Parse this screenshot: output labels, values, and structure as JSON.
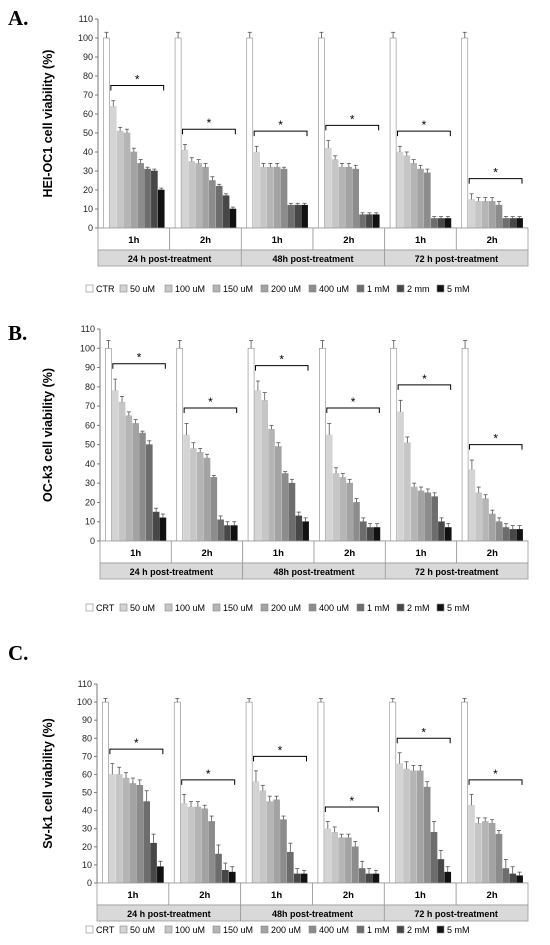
{
  "series_names": [
    "CTR",
    "50 uM",
    "100 uM",
    "150 uM",
    "200 uM",
    "400 uM",
    "1 mM",
    "2 mm",
    "5 mM"
  ],
  "colors": [
    "#ffffff",
    "#d4d4d4",
    "#c6c6c6",
    "#b5b5b5",
    "#a3a3a3",
    "#8c8c8c",
    "#6d6d6d",
    "#474747",
    "#111111"
  ],
  "chart_data": [
    {
      "type": "bar",
      "panel_label": "A.",
      "ylabel": "HEI-OC1 cell viability (%)",
      "ylim": [
        0,
        110
      ],
      "yticks": [
        0,
        10,
        20,
        30,
        40,
        50,
        60,
        70,
        80,
        90,
        100,
        110
      ],
      "categories": [
        "1h",
        "2h",
        "1h",
        "2h",
        "1h",
        "2h"
      ],
      "groups": [
        "24 h post-treatment",
        "48h post-treatment",
        "72 h post-treatment"
      ],
      "legend": [
        "CTR",
        "50 uM",
        "100 uM",
        "150 uM",
        "200 uM",
        "400 uM",
        "1 mM",
        "2 mm",
        "5 mM"
      ],
      "significance": "*",
      "series": [
        {
          "name": "CTR",
          "values": [
            100,
            100,
            100,
            100,
            100,
            100
          ]
        },
        {
          "name": "50 uM",
          "values": [
            64,
            41,
            40,
            42,
            40,
            15
          ]
        },
        {
          "name": "100 uM",
          "values": [
            51,
            35,
            32,
            36,
            38,
            14
          ]
        },
        {
          "name": "150 uM",
          "values": [
            50,
            34,
            32,
            32,
            34,
            14
          ]
        },
        {
          "name": "200 uM",
          "values": [
            40,
            32,
            32,
            32,
            31,
            14
          ]
        },
        {
          "name": "400 uM",
          "values": [
            34,
            25,
            31,
            31,
            29,
            12
          ]
        },
        {
          "name": "1 mM",
          "values": [
            31,
            22,
            12,
            7,
            5,
            5
          ]
        },
        {
          "name": "2 mm",
          "values": [
            30,
            17,
            12,
            7,
            5,
            5
          ]
        },
        {
          "name": "5 mM",
          "values": [
            20,
            10,
            12,
            7,
            5,
            5
          ]
        }
      ],
      "errors": [
        [
          3,
          3,
          3,
          3,
          3,
          3
        ],
        [
          3,
          3,
          3,
          4,
          3,
          3
        ],
        [
          2,
          2,
          2,
          2,
          2,
          2
        ],
        [
          2,
          2,
          2,
          2,
          2,
          2
        ],
        [
          2,
          2,
          2,
          2,
          2,
          2
        ],
        [
          2,
          2,
          1,
          2,
          2,
          2
        ],
        [
          1,
          1,
          1,
          1,
          1,
          1
        ],
        [
          1,
          1,
          1,
          1,
          1,
          1
        ],
        [
          1,
          1,
          1,
          1,
          1,
          1
        ]
      ]
    },
    {
      "type": "bar",
      "panel_label": "B.",
      "ylabel": "OC-k3 cell viability (%)",
      "ylim": [
        0,
        110
      ],
      "yticks": [
        0,
        10,
        20,
        30,
        40,
        50,
        60,
        70,
        80,
        90,
        100,
        110
      ],
      "categories": [
        "1h",
        "2h",
        "1h",
        "2h",
        "1h",
        "2h"
      ],
      "groups": [
        "24 h post-treatment",
        "48h post-treatment",
        "72 h post-treatment"
      ],
      "legend": [
        "CRT",
        "50 uM",
        "100 uM",
        "150 uM",
        "200 uM",
        "400 uM",
        "1 mM",
        "2 mM",
        "5 mM"
      ],
      "significance": "*",
      "series": [
        {
          "name": "CRT",
          "values": [
            100,
            100,
            100,
            100,
            100,
            100
          ]
        },
        {
          "name": "50 uM",
          "values": [
            78,
            55,
            78,
            55,
            67,
            37
          ]
        },
        {
          "name": "100 uM",
          "values": [
            72,
            48,
            73,
            35,
            51,
            25
          ]
        },
        {
          "name": "150 uM",
          "values": [
            65,
            46,
            58,
            33,
            28,
            22
          ]
        },
        {
          "name": "200 uM",
          "values": [
            61,
            43,
            49,
            30,
            26,
            14
          ]
        },
        {
          "name": "400 uM",
          "values": [
            56,
            33,
            35,
            20,
            25,
            10
          ]
        },
        {
          "name": "1 mM",
          "values": [
            50,
            11,
            30,
            10,
            23,
            7
          ]
        },
        {
          "name": "2 mM",
          "values": [
            15,
            8,
            13,
            7,
            10,
            6
          ]
        },
        {
          "name": "5 mM",
          "values": [
            12,
            8,
            10,
            7,
            7,
            6
          ]
        }
      ],
      "errors": [
        [
          4,
          4,
          4,
          4,
          4,
          4
        ],
        [
          6,
          6,
          5,
          6,
          6,
          5
        ],
        [
          3,
          3,
          4,
          3,
          3,
          3
        ],
        [
          2,
          2,
          2,
          2,
          2,
          2
        ],
        [
          2,
          2,
          2,
          2,
          2,
          2
        ],
        [
          1,
          1,
          1,
          2,
          2,
          2
        ],
        [
          2,
          2,
          2,
          2,
          2,
          2
        ],
        [
          2,
          2,
          2,
          2,
          2,
          2
        ],
        [
          2,
          2,
          2,
          2,
          2,
          2
        ]
      ]
    },
    {
      "type": "bar",
      "panel_label": "C.",
      "ylabel": "Sv-k1 cell viability (%)",
      "ylim": [
        0,
        110
      ],
      "yticks": [
        0,
        10,
        20,
        30,
        40,
        50,
        60,
        70,
        80,
        90,
        100,
        110
      ],
      "categories": [
        "1h",
        "2h",
        "1h",
        "2h",
        "1h",
        "2h"
      ],
      "groups": [
        "24 h post-treatment",
        "48h post-treatment",
        "72 h post-treatment"
      ],
      "legend": [
        "CRT",
        "50 uM",
        "100 uM",
        "150 uM",
        "200 uM",
        "400 uM",
        "1 mM",
        "2 mM",
        "5 mM"
      ],
      "significance": "*",
      "series": [
        {
          "name": "CRT",
          "values": [
            100,
            100,
            100,
            100,
            100,
            100
          ]
        },
        {
          "name": "50 uM",
          "values": [
            60,
            44,
            56,
            30,
            66,
            43
          ]
        },
        {
          "name": "100 uM",
          "values": [
            60,
            42,
            51,
            28,
            63,
            33
          ]
        },
        {
          "name": "150 uM",
          "values": [
            58,
            42,
            45,
            25,
            62,
            34
          ]
        },
        {
          "name": "200 uM",
          "values": [
            55,
            41,
            46,
            25,
            62,
            33
          ]
        },
        {
          "name": "400 uM",
          "values": [
            54,
            34,
            35,
            20,
            53,
            27
          ]
        },
        {
          "name": "1 mM",
          "values": [
            45,
            16,
            17,
            8,
            28,
            8
          ]
        },
        {
          "name": "2 mM",
          "values": [
            22,
            7,
            5,
            5,
            13,
            5
          ]
        },
        {
          "name": "5 mM",
          "values": [
            9,
            6,
            5,
            5,
            6,
            4
          ]
        }
      ],
      "errors": [
        [
          2,
          2,
          2,
          2,
          2,
          2
        ],
        [
          6,
          5,
          6,
          4,
          6,
          6
        ],
        [
          4,
          3,
          3,
          3,
          4,
          3
        ],
        [
          3,
          3,
          3,
          2,
          3,
          2
        ],
        [
          3,
          2,
          2,
          2,
          3,
          2
        ],
        [
          3,
          3,
          2,
          3,
          3,
          2
        ],
        [
          6,
          5,
          5,
          4,
          6,
          5
        ],
        [
          5,
          4,
          3,
          3,
          5,
          4
        ],
        [
          3,
          3,
          2,
          2,
          3,
          2
        ]
      ]
    }
  ]
}
